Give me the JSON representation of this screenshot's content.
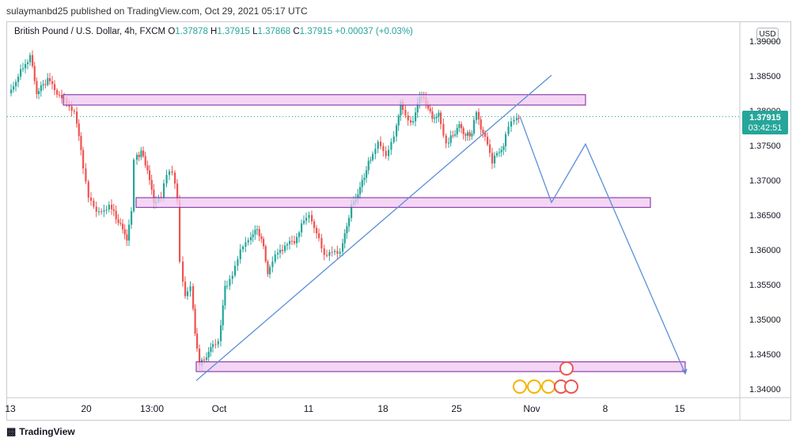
{
  "header": {
    "publisher_text": "sulaymanbd25 published on TradingView.com, Oct 29, 2021 05:17 UTC"
  },
  "symbol_bar": {
    "symbol": "British Pound / U.S. Dollar, 4h, FXCM",
    "open_label": "O",
    "open": "1.37878",
    "high_label": "H",
    "high": "1.37915",
    "low_label": "L",
    "low": "1.37868",
    "close_label": "C",
    "close": "1.37915",
    "change": "+0.00037 (+0.03%)"
  },
  "currency_button": "USD",
  "price_tag": {
    "price": "1.37915",
    "countdown": "03:42:51"
  },
  "footer": {
    "brand": "TradingView"
  },
  "colors": {
    "up": "#26a69a",
    "down": "#ef5350",
    "zone_fill": "#f0c8f0",
    "zone_stroke": "#7b1fa2",
    "drawing": "#5b8fd9",
    "tag": "#26a69a"
  },
  "chart_data": {
    "type": "candlestick",
    "ylim": [
      1.3395,
      1.3958
    ],
    "y_ticks": [
      "1.34000",
      "1.34500",
      "1.35000",
      "1.35500",
      "1.36000",
      "1.36500",
      "1.37000",
      "1.37500",
      "1.38000",
      "1.38500",
      "1.39000"
    ],
    "x_ticks": [
      "13",
      "20",
      "13:00",
      "Oct",
      "11",
      "18",
      "25",
      "Nov",
      "8",
      "15"
    ],
    "zones": [
      {
        "from": "Sep 17",
        "to": "Nov 6",
        "top": 1.3823,
        "bottom": 1.3808
      },
      {
        "from": "Sep 23",
        "to": "Nov 12",
        "top": 1.3675,
        "bottom": 1.3661
      },
      {
        "from": "Sep 28",
        "to": "Nov 15",
        "top": 1.3439,
        "bottom": 1.3425
      }
    ],
    "trendline": {
      "start": {
        "date": "Sep 28",
        "price": 1.3412
      },
      "end": {
        "date": "Nov 3",
        "price": 1.3851
      }
    },
    "projection": [
      {
        "date": "Oct 29",
        "price": 1.3792
      },
      {
        "date": "Nov 3",
        "price": 1.3668
      },
      {
        "date": "Nov 6",
        "price": 1.3752
      },
      {
        "date": "Nov 15",
        "price": 1.3422
      }
    ],
    "last_price": 1.37915
  }
}
